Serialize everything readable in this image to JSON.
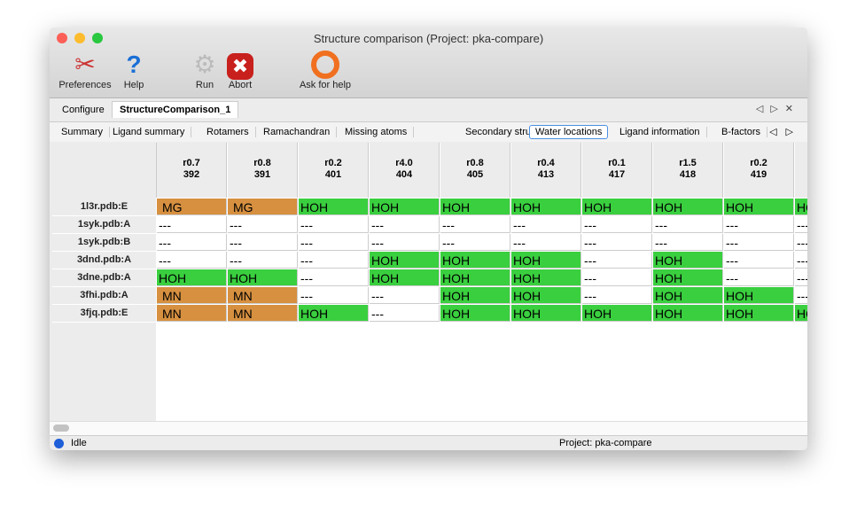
{
  "window": {
    "title": "Structure comparison (Project: pka-compare)"
  },
  "toolbar": [
    {
      "label": "Preferences",
      "icon": "tools-icon"
    },
    {
      "label": "Help",
      "icon": "help-icon"
    },
    {
      "label": "Run",
      "icon": "gear-icon"
    },
    {
      "label": "Abort",
      "icon": "abort-icon"
    },
    {
      "label": "Ask for help",
      "icon": "lifebuoy-icon"
    }
  ],
  "tabs": [
    "Configure",
    "StructureComparison_1"
  ],
  "active_tab": 1,
  "subtabs": [
    "Summary",
    "Ligand summary",
    "Rotamers",
    "Ramachandran",
    "Missing atoms",
    "Secondary structure",
    "Water locations",
    "Ligand information",
    "B-factors"
  ],
  "active_subtab": 6,
  "table": {
    "columns": [
      [
        "r0.7",
        "392"
      ],
      [
        "r0.8",
        "391"
      ],
      [
        "r0.2",
        "401"
      ],
      [
        "r4.0",
        "404"
      ],
      [
        "r0.8",
        "405"
      ],
      [
        "r0.4",
        "413"
      ],
      [
        "r0.1",
        "417"
      ],
      [
        "r1.5",
        "418"
      ],
      [
        "r0.2",
        "419"
      ],
      [
        "",
        ""
      ]
    ],
    "rows": [
      {
        "label": "1l3r.pdb:E",
        "cells": [
          "MG",
          "MG",
          "HOH",
          "HOH",
          "HOH",
          "HOH",
          "HOH",
          "HOH",
          "HOH",
          "HOH"
        ]
      },
      {
        "label": "1syk.pdb:A",
        "cells": [
          "---",
          "---",
          "---",
          "---",
          "---",
          "---",
          "---",
          "---",
          "---",
          "---"
        ]
      },
      {
        "label": "1syk.pdb:B",
        "cells": [
          "---",
          "---",
          "---",
          "---",
          "---",
          "---",
          "---",
          "---",
          "---",
          "---"
        ]
      },
      {
        "label": "3dnd.pdb:A",
        "cells": [
          "---",
          "---",
          "---",
          "HOH",
          "HOH",
          "HOH",
          "---",
          "HOH",
          "---",
          "---"
        ]
      },
      {
        "label": "3dne.pdb:A",
        "cells": [
          "HOH",
          "HOH",
          "---",
          "HOH",
          "HOH",
          "HOH",
          "---",
          "HOH",
          "---",
          "---"
        ]
      },
      {
        "label": "3fhi.pdb:A",
        "cells": [
          "MN",
          "MN",
          "---",
          "---",
          "HOH",
          "HOH",
          "---",
          "HOH",
          "HOH",
          "---"
        ]
      },
      {
        "label": "3fjq.pdb:E",
        "cells": [
          "MN",
          "MN",
          "HOH",
          "---",
          "HOH",
          "HOH",
          "HOH",
          "HOH",
          "HOH",
          "HOH"
        ]
      }
    ]
  },
  "colors": {
    "metal": "#d69040",
    "water": "#3acf3f",
    "empty": "#ffffff"
  },
  "status": {
    "text": "Idle",
    "project": "Project: pka-compare"
  }
}
